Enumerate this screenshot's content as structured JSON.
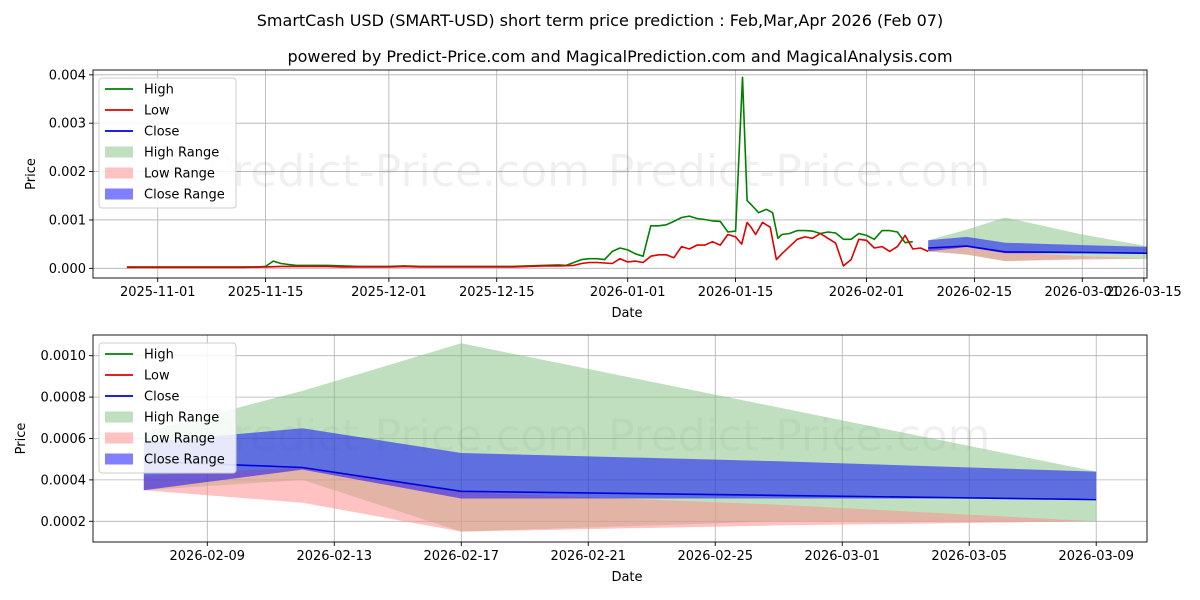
{
  "title": "SmartCash USD (SMART-USD) short term price prediction : Feb,Mar,Apr 2026 (Feb 07)",
  "subtitle": "powered by Predict-Price.com and MagicalPrediction.com and MagicalAnalysis.com",
  "watermark": "Predict-Price.com",
  "colors": {
    "high": "#008000",
    "low": "#e00000",
    "close": "#0000dd",
    "high_range": "#7fbf7f",
    "low_range": "#ff9090",
    "close_range": "#0000ff",
    "grid": "#b0b0b0"
  },
  "legend": [
    {
      "key": "high",
      "label": "High",
      "kind": "line"
    },
    {
      "key": "low",
      "label": "Low",
      "kind": "line"
    },
    {
      "key": "close",
      "label": "Close",
      "kind": "line"
    },
    {
      "key": "high_range",
      "label": "High Range",
      "kind": "patch"
    },
    {
      "key": "low_range",
      "label": "Low Range",
      "kind": "patch"
    },
    {
      "key": "close_range",
      "label": "Close Range",
      "kind": "patch"
    }
  ],
  "chart_data": [
    {
      "type": "line",
      "id": "history",
      "xlabel": "Date",
      "ylabel": "Price",
      "legend_position": "top-left",
      "grid": true,
      "xlim": [
        -4.4,
        132.4
      ],
      "ylim": [
        -0.0002,
        0.0041
      ],
      "x_origin_date": "2025-10-28",
      "x_unit": "days",
      "xticks": [
        {
          "x": 4,
          "label": "2025-11-01"
        },
        {
          "x": 18,
          "label": "2025-11-15"
        },
        {
          "x": 34,
          "label": "2025-12-01"
        },
        {
          "x": 48,
          "label": "2025-12-15"
        },
        {
          "x": 65,
          "label": "2026-01-01"
        },
        {
          "x": 79,
          "label": "2026-01-15"
        },
        {
          "x": 96,
          "label": "2026-02-01"
        },
        {
          "x": 110,
          "label": "2026-02-15"
        },
        {
          "x": 124,
          "label": "2026-03-01"
        },
        {
          "x": 132,
          "label": "2026-03-15"
        }
      ],
      "yticks": [
        {
          "y": 0.0,
          "label": "0.000"
        },
        {
          "y": 0.001,
          "label": "0.001"
        },
        {
          "y": 0.002,
          "label": "0.002"
        },
        {
          "y": 0.003,
          "label": "0.003"
        },
        {
          "y": 0.004,
          "label": "0.004"
        }
      ],
      "series": [
        {
          "name": "High",
          "key": "high",
          "points": [
            [
              0,
              3e-05
            ],
            [
              3,
              3e-05
            ],
            [
              6,
              3e-05
            ],
            [
              9,
              3e-05
            ],
            [
              12,
              3e-05
            ],
            [
              15,
              3e-05
            ],
            [
              17,
              3e-05
            ],
            [
              18,
              4e-05
            ],
            [
              19,
              0.00015
            ],
            [
              20,
              0.0001
            ],
            [
              21,
              8e-05
            ],
            [
              22,
              6e-05
            ],
            [
              24,
              6e-05
            ],
            [
              26,
              6e-05
            ],
            [
              28,
              5e-05
            ],
            [
              30,
              4e-05
            ],
            [
              32,
              4e-05
            ],
            [
              34,
              4e-05
            ],
            [
              36,
              5e-05
            ],
            [
              38,
              4e-05
            ],
            [
              40,
              4e-05
            ],
            [
              42,
              4e-05
            ],
            [
              44,
              4e-05
            ],
            [
              46,
              4e-05
            ],
            [
              48,
              4e-05
            ],
            [
              50,
              4e-05
            ],
            [
              52,
              5e-05
            ],
            [
              54,
              6e-05
            ],
            [
              56,
              7e-05
            ],
            [
              57,
              6e-05
            ],
            [
              58,
              0.00012
            ],
            [
              59,
              0.00018
            ],
            [
              60,
              0.0002
            ],
            [
              61,
              0.0002
            ],
            [
              62,
              0.00018
            ],
            [
              63,
              0.00035
            ],
            [
              64,
              0.00042
            ],
            [
              65,
              0.00038
            ],
            [
              66,
              0.0003
            ],
            [
              67,
              0.00025
            ],
            [
              68,
              0.00088
            ],
            [
              69,
              0.00088
            ],
            [
              70,
              0.0009
            ],
            [
              71,
              0.00097
            ],
            [
              72,
              0.00105
            ],
            [
              73,
              0.00108
            ],
            [
              74,
              0.00103
            ],
            [
              75,
              0.00101
            ],
            [
              76,
              0.00098
            ],
            [
              77,
              0.00097
            ],
            [
              78,
              0.00075
            ],
            [
              79,
              0.00077
            ],
            [
              79.9,
              0.00395
            ],
            [
              80.5,
              0.0014
            ],
            [
              81,
              0.00132
            ],
            [
              82,
              0.00115
            ],
            [
              83,
              0.00122
            ],
            [
              83.8,
              0.00115
            ],
            [
              84.5,
              0.00062
            ],
            [
              85,
              0.0007
            ],
            [
              86,
              0.00072
            ],
            [
              87,
              0.00078
            ],
            [
              88,
              0.00078
            ],
            [
              89,
              0.00077
            ],
            [
              90,
              0.00072
            ],
            [
              91,
              0.00075
            ],
            [
              92,
              0.00073
            ],
            [
              93,
              0.0006
            ],
            [
              94,
              0.0006
            ],
            [
              95,
              0.00072
            ],
            [
              96,
              0.00068
            ],
            [
              97,
              0.0006
            ],
            [
              98,
              0.00078
            ],
            [
              99,
              0.00078
            ],
            [
              100,
              0.00075
            ],
            [
              101,
              0.00053
            ],
            [
              102,
              0.00055
            ]
          ]
        },
        {
          "name": "Low",
          "key": "low",
          "points": [
            [
              0,
              2e-05
            ],
            [
              3,
              2e-05
            ],
            [
              6,
              2e-05
            ],
            [
              9,
              2e-05
            ],
            [
              12,
              2e-05
            ],
            [
              15,
              2e-05
            ],
            [
              18,
              3e-05
            ],
            [
              20,
              4e-05
            ],
            [
              22,
              4e-05
            ],
            [
              24,
              4e-05
            ],
            [
              26,
              4e-05
            ],
            [
              28,
              3e-05
            ],
            [
              30,
              3e-05
            ],
            [
              32,
              3e-05
            ],
            [
              34,
              3e-05
            ],
            [
              36,
              4e-05
            ],
            [
              38,
              3e-05
            ],
            [
              40,
              3e-05
            ],
            [
              42,
              3e-05
            ],
            [
              44,
              3e-05
            ],
            [
              46,
              3e-05
            ],
            [
              48,
              3e-05
            ],
            [
              50,
              3e-05
            ],
            [
              52,
              4e-05
            ],
            [
              54,
              5e-05
            ],
            [
              56,
              5e-05
            ],
            [
              58,
              6e-05
            ],
            [
              59,
              0.0001
            ],
            [
              60,
              0.00012
            ],
            [
              61,
              0.00012
            ],
            [
              62,
              0.00011
            ],
            [
              63,
              0.0001
            ],
            [
              64,
              0.0002
            ],
            [
              65,
              0.00013
            ],
            [
              66,
              0.00015
            ],
            [
              67,
              0.00012
            ],
            [
              68,
              0.00025
            ],
            [
              69,
              0.00028
            ],
            [
              70,
              0.00028
            ],
            [
              71,
              0.00022
            ],
            [
              72,
              0.00045
            ],
            [
              73,
              0.0004
            ],
            [
              74,
              0.00048
            ],
            [
              75,
              0.00048
            ],
            [
              76,
              0.00055
            ],
            [
              77,
              0.00048
            ],
            [
              78,
              0.0007
            ],
            [
              79,
              0.00065
            ],
            [
              79.8,
              0.0005
            ],
            [
              80.5,
              0.00095
            ],
            [
              81,
              0.00085
            ],
            [
              81.6,
              0.0007
            ],
            [
              82.5,
              0.00095
            ],
            [
              83.5,
              0.00085
            ],
            [
              84.3,
              0.00018
            ],
            [
              85,
              0.0003
            ],
            [
              86,
              0.00045
            ],
            [
              87,
              0.0006
            ],
            [
              88,
              0.00065
            ],
            [
              89,
              0.00062
            ],
            [
              90,
              0.00072
            ],
            [
              91,
              0.00062
            ],
            [
              92,
              0.00052
            ],
            [
              93,
              5e-05
            ],
            [
              94,
              0.00018
            ],
            [
              95,
              0.0006
            ],
            [
              96,
              0.00058
            ],
            [
              97,
              0.00042
            ],
            [
              98,
              0.00045
            ],
            [
              99,
              0.00035
            ],
            [
              100,
              0.00045
            ],
            [
              101,
              0.00068
            ],
            [
              102,
              0.0004
            ],
            [
              103,
              0.00042
            ],
            [
              104,
              0.00035
            ]
          ]
        },
        {
          "name": "Close",
          "key": "close",
          "points": [
            [
              104,
              0.00042
            ],
            [
              109,
              0.00046
            ],
            [
              114,
              0.00034
            ],
            [
              124,
              0.00033
            ],
            [
              133,
              0.00031
            ]
          ]
        }
      ],
      "ranges": [
        {
          "name": "High Range",
          "key": "high_range",
          "x": [
            104,
            109,
            114,
            124,
            133
          ],
          "upper": [
            0.00058,
            0.0008,
            0.00105,
            0.0007,
            0.00044
          ],
          "lower": [
            0.00035,
            0.00028,
            0.00015,
            0.0002,
            0.0002
          ]
        },
        {
          "name": "Low Range",
          "key": "low_range",
          "x": [
            104,
            109,
            114,
            124,
            133
          ],
          "upper": [
            0.00042,
            0.00045,
            0.00034,
            0.00025,
            0.0002
          ],
          "lower": [
            0.00035,
            0.00029,
            0.00015,
            0.00018,
            0.0002
          ]
        },
        {
          "name": "Close Range",
          "key": "close_range",
          "x": [
            104,
            109,
            114,
            124,
            133
          ],
          "upper": [
            0.00058,
            0.00065,
            0.00053,
            0.00048,
            0.00044
          ],
          "lower": [
            0.00035,
            0.00044,
            0.00031,
            0.00031,
            0.00031
          ]
        }
      ]
    },
    {
      "type": "line",
      "id": "forecast",
      "xlabel": "Date",
      "ylabel": "Price",
      "legend_position": "top-left",
      "grid": true,
      "xlim": [
        -1.6,
        31.6
      ],
      "ylim": [
        0.0001,
        0.0011
      ],
      "x_origin_date": "2026-02-07",
      "x_unit": "days",
      "xticks": [
        {
          "x": 2,
          "label": "2026-02-09"
        },
        {
          "x": 6,
          "label": "2026-02-13"
        },
        {
          "x": 10,
          "label": "2026-02-17"
        },
        {
          "x": 14,
          "label": "2026-02-21"
        },
        {
          "x": 18,
          "label": "2026-02-25"
        },
        {
          "x": 22,
          "label": "2026-03-01"
        },
        {
          "x": 26,
          "label": "2026-03-05"
        },
        {
          "x": 30,
          "label": "2026-03-09"
        }
      ],
      "yticks": [
        {
          "y": 0.0002,
          "label": "0.0002"
        },
        {
          "y": 0.0004,
          "label": "0.0004"
        },
        {
          "y": 0.0006,
          "label": "0.0006"
        },
        {
          "y": 0.0008,
          "label": "0.0008"
        },
        {
          "y": 0.001,
          "label": "0.0010"
        }
      ],
      "series": [
        {
          "name": "Close",
          "key": "close",
          "points": [
            [
              0,
              0.00049
            ],
            [
              5,
              0.00046
            ],
            [
              10,
              0.000345
            ],
            [
              20,
              0.000325
            ],
            [
              30,
              0.000305
            ]
          ]
        }
      ],
      "ranges": [
        {
          "name": "High Range",
          "key": "high_range",
          "x": [
            0,
            5,
            10,
            20,
            30
          ],
          "upper": [
            0.00063,
            0.00083,
            0.00106,
            0.00075,
            0.00044
          ],
          "lower": [
            0.00035,
            0.0004,
            0.00015,
            0.0002,
            0.0002
          ]
        },
        {
          "name": "Low Range",
          "key": "low_range",
          "x": [
            0,
            5,
            10,
            20,
            30
          ],
          "upper": [
            0.00042,
            0.00046,
            0.00034,
            0.00028,
            0.0002
          ],
          "lower": [
            0.00035,
            0.00029,
            0.00015,
            0.00018,
            0.0002
          ]
        },
        {
          "name": "Close Range",
          "key": "close_range",
          "x": [
            0,
            5,
            10,
            20,
            30
          ],
          "upper": [
            0.00058,
            0.00065,
            0.00053,
            0.00049,
            0.00044
          ],
          "lower": [
            0.00035,
            0.00045,
            0.00031,
            0.00031,
            0.00031
          ]
        }
      ]
    }
  ]
}
